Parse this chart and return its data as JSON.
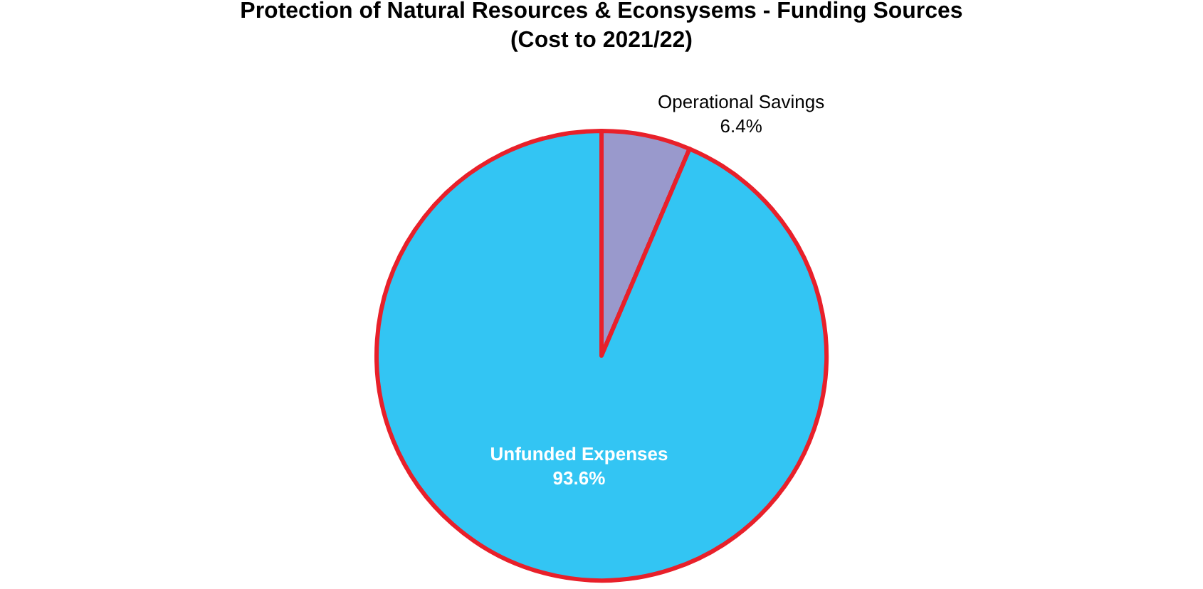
{
  "chart_data": {
    "type": "pie",
    "title": "Protection of Natural Resources & Econsysems - Funding Sources\n(Cost to 2021/22)",
    "categories": [
      "Operational Savings",
      "Unfunded Expenses"
    ],
    "values": [
      6.4,
      93.6
    ],
    "value_labels": [
      "6.4%",
      "93.6%"
    ],
    "colors": [
      "#9999cc",
      "#33c5f3"
    ],
    "legend": false
  }
}
